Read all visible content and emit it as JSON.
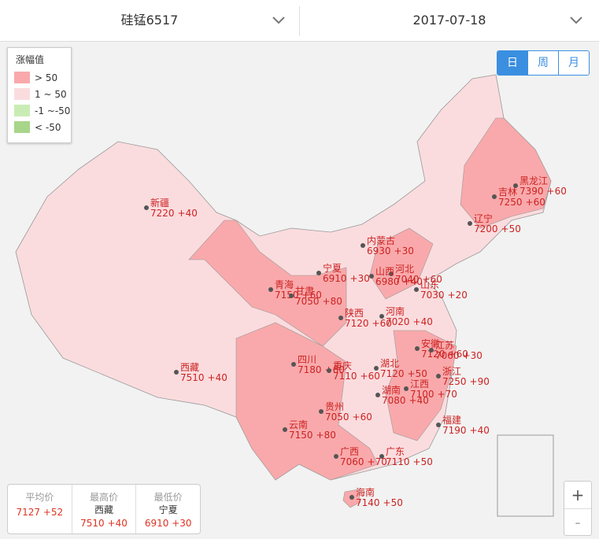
{
  "header": {
    "product": "硅锰6517",
    "date": "2017-07-18"
  },
  "legend": {
    "title": "涨幅值",
    "items": [
      {
        "label": "> 50",
        "color": "#f9a9ab"
      },
      {
        "label": "1 ~ 50",
        "color": "#fbdcde"
      },
      {
        "label": "-1 ~-50",
        "color": "#c9ecb4"
      },
      {
        "label": "< -50",
        "color": "#a7d68a"
      }
    ]
  },
  "period_buttons": [
    "日",
    "周",
    "月"
  ],
  "provinces": [
    {
      "name": "黑龙江",
      "price": 7390,
      "change": "+60"
    },
    {
      "name": "吉林",
      "price": 7250,
      "change": "+60"
    },
    {
      "name": "辽宁",
      "price": 7200,
      "change": "+50"
    },
    {
      "name": "内蒙古",
      "price": 6930,
      "change": "+30"
    },
    {
      "name": "河北",
      "price": 7040,
      "change": "+60"
    },
    {
      "name": "山西",
      "price": 6980,
      "change": "+40"
    },
    {
      "name": "宁夏",
      "price": 6910,
      "change": "+30"
    },
    {
      "name": "山东",
      "price": 7030,
      "change": "+20"
    },
    {
      "name": "青海",
      "price": 7150,
      "change": "+60"
    },
    {
      "name": "甘肃",
      "price": 7050,
      "change": "+80"
    },
    {
      "name": "陕西",
      "price": 7120,
      "change": "+60"
    },
    {
      "name": "河南",
      "price": 7020,
      "change": "+40"
    },
    {
      "name": "安徽",
      "price": 7120,
      "change": "+60"
    },
    {
      "name": "江苏",
      "price": 7060,
      "change": "+30"
    },
    {
      "name": "四川",
      "price": 7180,
      "change": "+60"
    },
    {
      "name": "重庆",
      "price": 7110,
      "change": "+60"
    },
    {
      "name": "湖北",
      "price": 7120,
      "change": "+50"
    },
    {
      "name": "浙江",
      "price": 7250,
      "change": "+90"
    },
    {
      "name": "江西",
      "price": 7100,
      "change": "+70"
    },
    {
      "name": "湖南",
      "price": 7080,
      "change": "+40"
    },
    {
      "name": "贵州",
      "price": 7050,
      "change": "+60"
    },
    {
      "name": "福建",
      "price": 7190,
      "change": "+40"
    },
    {
      "name": "云南",
      "price": 7150,
      "change": "+80"
    },
    {
      "name": "广西",
      "price": 7060,
      "change": "+70"
    },
    {
      "name": "广东",
      "price": 7110,
      "change": "+50"
    },
    {
      "name": "海南",
      "price": 7140,
      "change": "+50"
    },
    {
      "name": "新疆",
      "price": 7220,
      "change": "+40"
    },
    {
      "name": "西藏",
      "price": 7510,
      "change": "+40"
    }
  ],
  "stats": [
    {
      "label": "平均价",
      "price": 7127,
      "change": "+52"
    },
    {
      "label": "最高价",
      "region": "西藏",
      "price": 7510,
      "change": "+40"
    },
    {
      "label": "最低价",
      "region": "宁夏",
      "price": 6910,
      "change": "+30"
    }
  ],
  "zoom": [
    "+",
    "-"
  ]
}
